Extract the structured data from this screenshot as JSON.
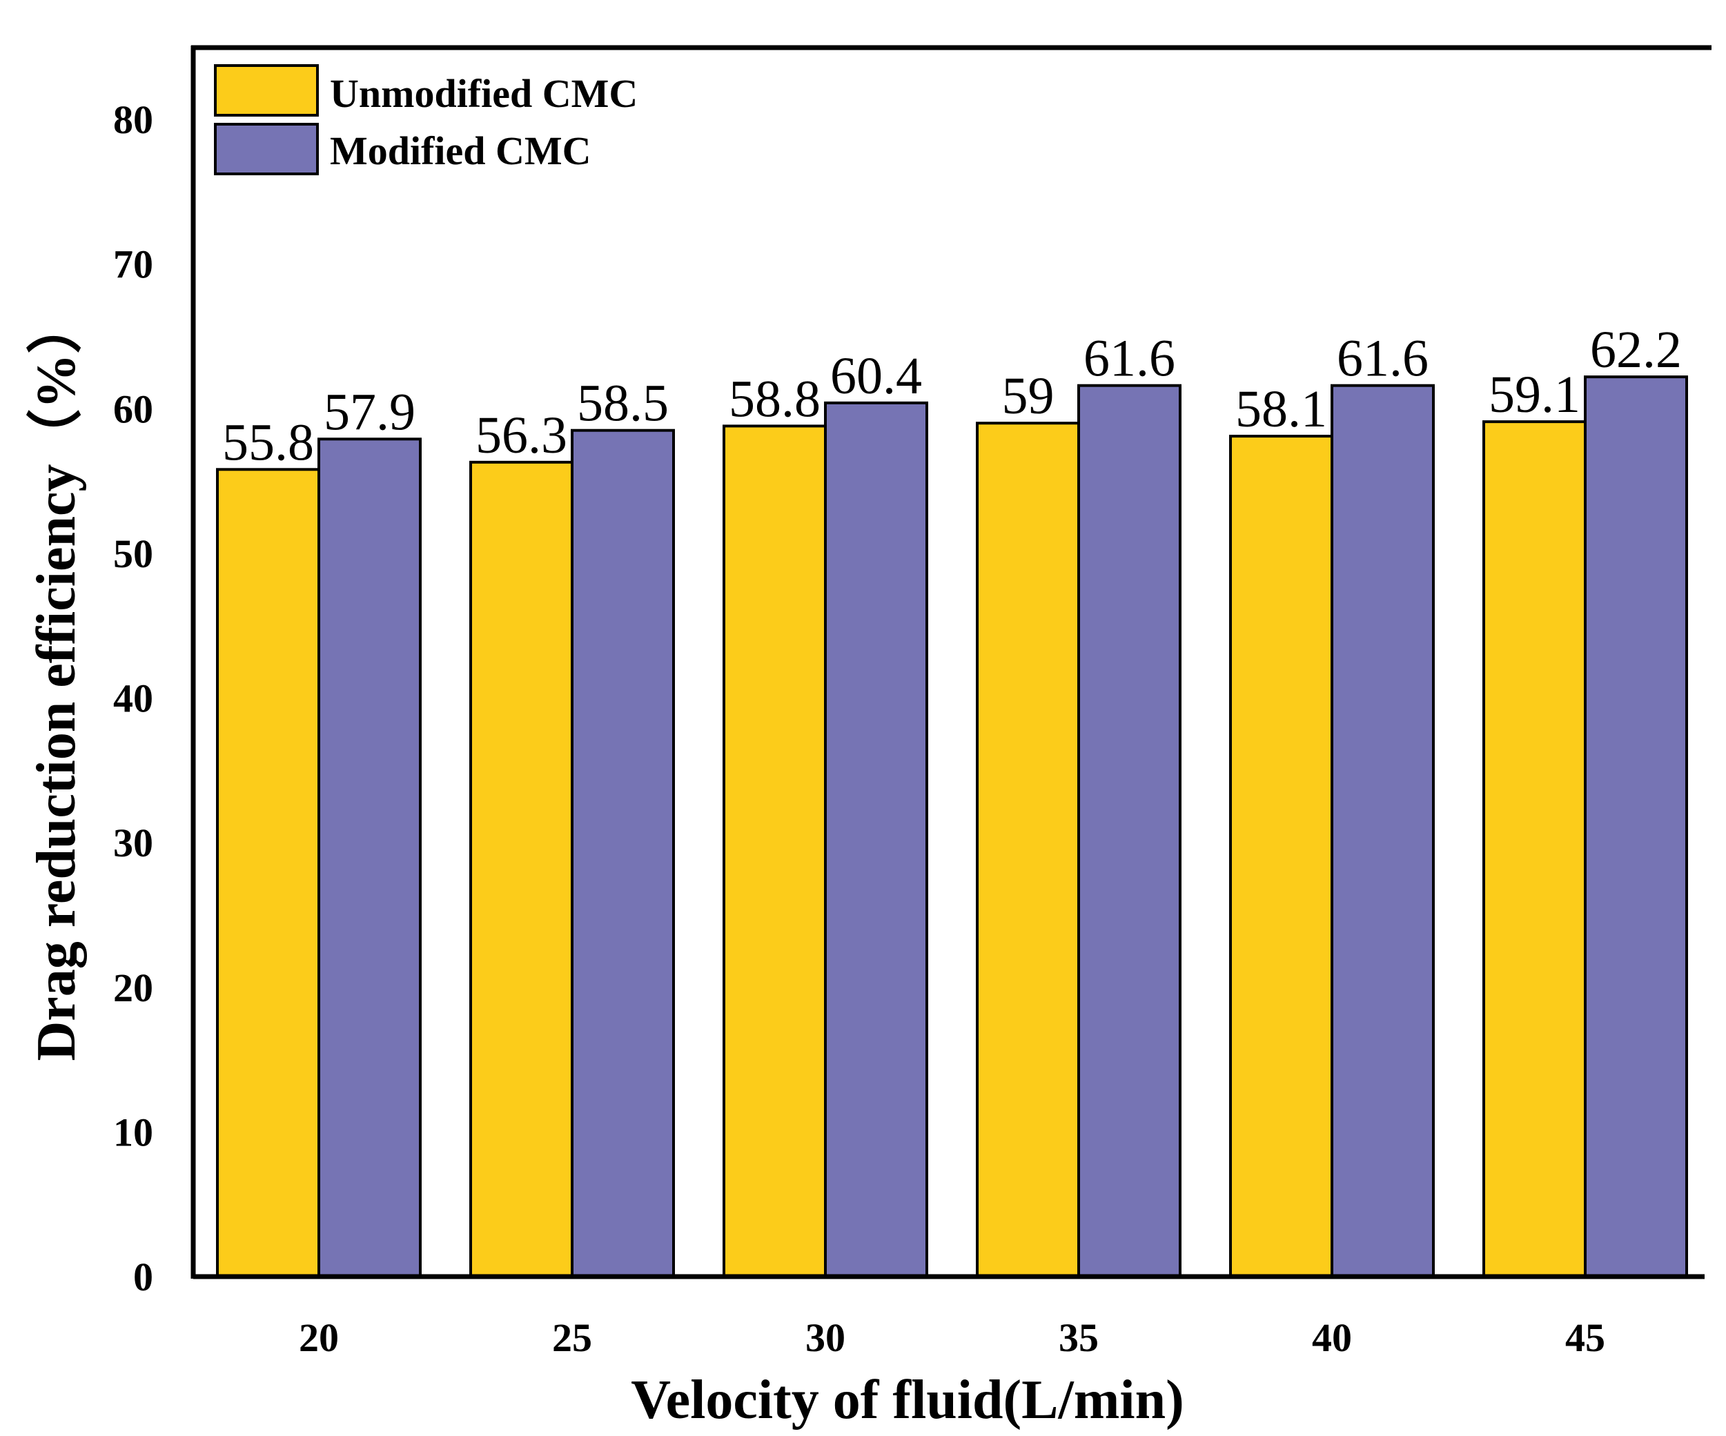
{
  "chart_data": {
    "type": "bar",
    "title": "",
    "xlabel": "Velocity of fluid(L/min)",
    "ylabel": "Drag reduction efficiency（%）",
    "categories": [
      "20",
      "25",
      "30",
      "35",
      "40",
      "45"
    ],
    "series": [
      {
        "name": "Unmodified CMC",
        "color": "#FCCC1A",
        "values": [
          55.8,
          56.3,
          58.8,
          59,
          58.1,
          59.1
        ],
        "labels": [
          "55.8",
          "56.3",
          "58.8",
          "59",
          "58.1",
          "59.1"
        ]
      },
      {
        "name": "Modified CMC",
        "color": "#7674B4",
        "values": [
          57.9,
          58.5,
          60.4,
          61.6,
          61.6,
          62.2
        ],
        "labels": [
          "57.9",
          "58.5",
          "60.4",
          "61.6",
          "61.6",
          "62.2"
        ]
      }
    ],
    "ylim": [
      0,
      85
    ],
    "yticks": [
      "0",
      "10",
      "20",
      "30",
      "40",
      "50",
      "60",
      "70",
      "80"
    ],
    "grid": false,
    "legend": "top-left"
  }
}
